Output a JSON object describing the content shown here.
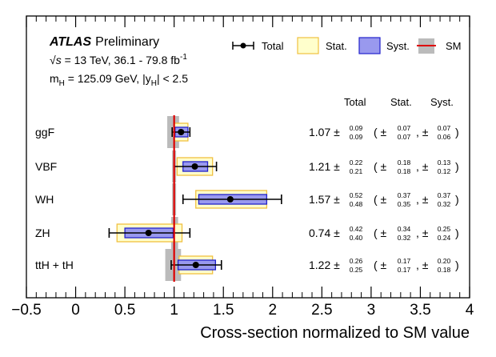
{
  "chart_data": {
    "type": "errorbar",
    "experiment": "ATLAS",
    "status": "Preliminary",
    "energy_sqrt": "s",
    "energy_text": " = 13 TeV, 36.1 - 79.8 fb",
    "energy_sup": "-1",
    "mass_label_m": "m",
    "mass_label_sub": "H",
    "mass_text": " = 125.09 GeV, |y",
    "rapidity_sub": "H",
    "rapidity_text": "| < 2.5",
    "xlabel": "Cross-section normalized to SM value",
    "xlim": [
      -0.5,
      4
    ],
    "xticks": [
      -0.5,
      0,
      0.5,
      1,
      1.5,
      2,
      2.5,
      3,
      3.5,
      4
    ],
    "xtick_labels": [
      "−0.5",
      "0",
      "0.5",
      "1",
      "1.5",
      "2",
      "2.5",
      "3",
      "3.5",
      "4"
    ],
    "sm_value": 1,
    "legend": {
      "total": "Total",
      "stat": "Stat.",
      "syst": "Syst.",
      "sm": "SM"
    },
    "column_headers": {
      "total": "Total",
      "stat": "Stat.",
      "syst": "Syst."
    },
    "pm": "±",
    "colors": {
      "stat_fill": "#ffffcc",
      "stat_edge": "#f0c040",
      "syst_fill": "#9999ee",
      "syst_edge": "#2222cc",
      "sm_line": "#dd0000",
      "sm_band": "#bbbbbb"
    },
    "processes": [
      {
        "name": "ggF",
        "value": 1.07,
        "value_text": "1.07",
        "total_up": 0.09,
        "total_dn": 0.09,
        "total_up_text": "0.09",
        "total_dn_text": "0.09",
        "stat_up": 0.07,
        "stat_dn": 0.07,
        "stat_up_text": "0.07",
        "stat_dn_text": "0.07",
        "syst_up": 0.07,
        "syst_dn": 0.06,
        "syst_up_text": "0.07",
        "syst_dn_text": "0.06",
        "theory_up": 0.05,
        "theory_dn": 0.07
      },
      {
        "name": "VBF",
        "value": 1.21,
        "value_text": "1.21",
        "total_up": 0.22,
        "total_dn": 0.21,
        "total_up_text": "0.22",
        "total_dn_text": "0.21",
        "stat_up": 0.18,
        "stat_dn": 0.18,
        "stat_up_text": "0.18",
        "stat_dn_text": "0.18",
        "syst_up": 0.13,
        "syst_dn": 0.12,
        "syst_up_text": "0.13",
        "syst_dn_text": "0.12",
        "theory_up": 0.02,
        "theory_dn": 0.02
      },
      {
        "name": "WH",
        "value": 1.57,
        "value_text": "1.57",
        "total_up": 0.52,
        "total_dn": 0.48,
        "total_up_text": "0.52",
        "total_dn_text": "0.48",
        "stat_up": 0.37,
        "stat_dn": 0.35,
        "stat_up_text": "0.37",
        "stat_dn_text": "0.35",
        "syst_up": 0.37,
        "syst_dn": 0.32,
        "syst_up_text": "0.37",
        "syst_dn_text": "0.32",
        "theory_up": 0.02,
        "theory_dn": 0.02
      },
      {
        "name": "ZH",
        "value": 0.74,
        "value_text": "0.74",
        "total_up": 0.42,
        "total_dn": 0.4,
        "total_up_text": "0.42",
        "total_dn_text": "0.40",
        "stat_up": 0.34,
        "stat_dn": 0.32,
        "stat_up_text": "0.34",
        "stat_dn_text": "0.32",
        "syst_up": 0.25,
        "syst_dn": 0.24,
        "syst_up_text": "0.25",
        "syst_dn_text": "0.24",
        "theory_up": 0.04,
        "theory_dn": 0.03
      },
      {
        "name": "ttH + tH",
        "value": 1.22,
        "value_text": "1.22",
        "total_up": 0.26,
        "total_dn": 0.25,
        "total_up_text": "0.26",
        "total_dn_text": "0.25",
        "stat_up": 0.17,
        "stat_dn": 0.17,
        "stat_up_text": "0.17",
        "stat_dn_text": "0.17",
        "syst_up": 0.2,
        "syst_dn": 0.18,
        "syst_up_text": "0.20",
        "syst_dn_text": "0.18",
        "theory_up": 0.07,
        "theory_dn": 0.09
      }
    ]
  }
}
